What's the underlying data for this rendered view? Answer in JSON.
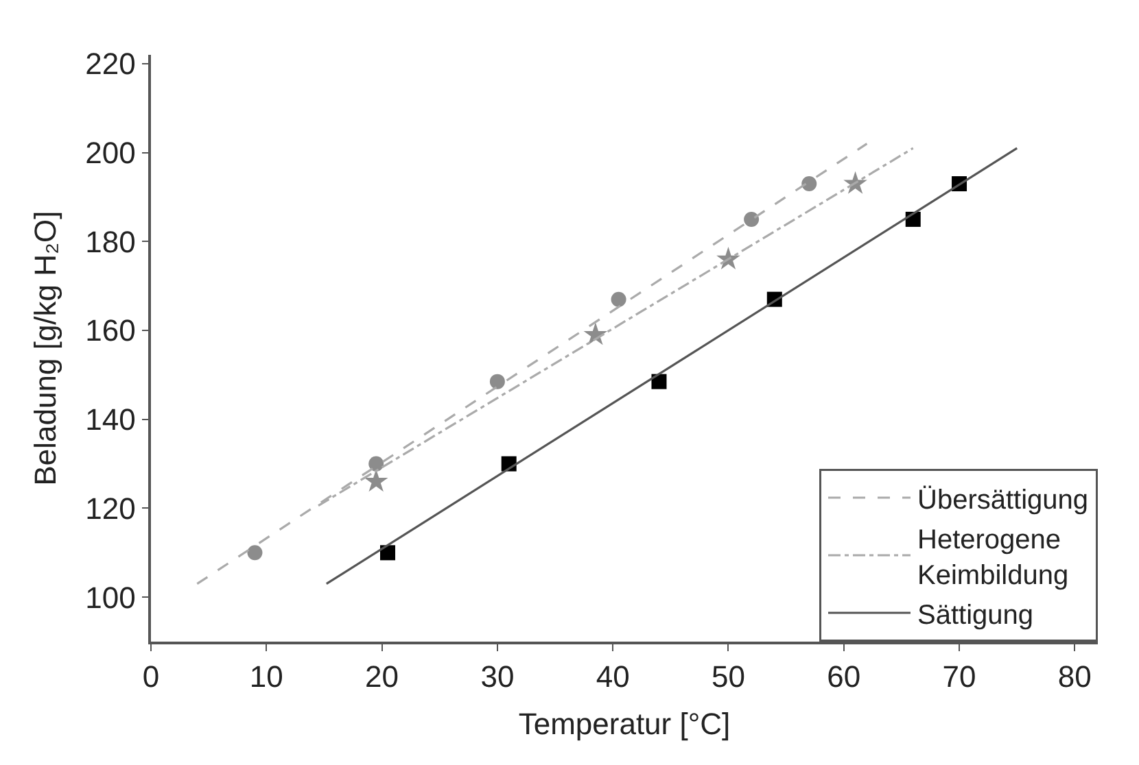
{
  "chart_data": {
    "type": "scatter",
    "xlabel": "Temperatur [°C]",
    "ylabel": "Beladung [g/kg H₂O]",
    "xlim": [
      0,
      82
    ],
    "xticks": [
      0,
      10,
      20,
      30,
      40,
      50,
      60,
      70,
      80
    ],
    "ylim": [
      90,
      222
    ],
    "yticks": [
      100,
      120,
      140,
      160,
      180,
      200,
      220
    ],
    "legend": "bottom right",
    "series": [
      {
        "type": "scatter",
        "marker": "circle",
        "color": "#8c8c8c",
        "x": [
          9,
          19.5,
          30,
          40.5,
          52,
          57
        ],
        "values": [
          110,
          130,
          148.5,
          167,
          185,
          193
        ]
      },
      {
        "type": "scatter",
        "marker": "star",
        "color": "#8c8c8c",
        "x": [
          19.5,
          38.5,
          50,
          61
        ],
        "values": [
          126,
          159,
          176,
          193
        ]
      },
      {
        "type": "scatter",
        "marker": "square",
        "color": "#000000",
        "x": [
          20.5,
          31,
          44,
          54,
          66,
          70
        ],
        "values": [
          110,
          130,
          148.5,
          167,
          185,
          193
        ]
      },
      {
        "type": "line",
        "name": "Übersättigung",
        "line_style": "dashed",
        "color": "#aaaaaa",
        "x": [
          4,
          62
        ],
        "values": [
          103,
          202
        ]
      },
      {
        "type": "line",
        "name": "Heterogene\nKeimbildung",
        "line_style": "dashdot",
        "color": "#aaaaaa",
        "x": [
          14.5,
          66
        ],
        "values": [
          120.6,
          201
        ]
      },
      {
        "type": "line",
        "name": "Sättigung",
        "line_style": "solid",
        "color": "#555555",
        "x": [
          15.2,
          75
        ],
        "values": [
          103,
          201
        ]
      }
    ]
  }
}
